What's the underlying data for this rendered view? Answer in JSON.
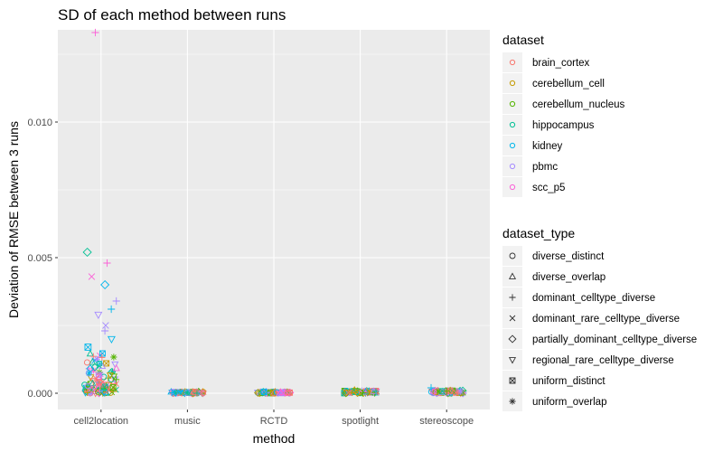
{
  "chart_data": {
    "type": "scatter",
    "title": "SD of each method between runs",
    "xlabel": "method",
    "ylabel": "Deviation of RMSE between 3 runs",
    "categories": [
      "cell2location",
      "music",
      "RCTD",
      "spotlight",
      "stereoscope"
    ],
    "ylim": [
      -0.0006,
      0.0134
    ],
    "yticks": [
      0.0,
      0.005,
      0.01
    ],
    "ytick_labels": [
      "0.000",
      "0.005",
      "0.010"
    ],
    "grid": true,
    "legend_placement": "right",
    "legends": [
      {
        "title": "dataset",
        "kind": "color",
        "entries": [
          {
            "label": "brain_cortex",
            "color": "#F8766D"
          },
          {
            "label": "cerebellum_cell",
            "color": "#C49A00"
          },
          {
            "label": "cerebellum_nucleus",
            "color": "#53B400"
          },
          {
            "label": "hippocampus",
            "color": "#00C094"
          },
          {
            "label": "kidney",
            "color": "#00B6EB"
          },
          {
            "label": "pbmc",
            "color": "#A58AFF"
          },
          {
            "label": "scc_p5",
            "color": "#FB61D7"
          }
        ]
      },
      {
        "title": "dataset_type",
        "kind": "shape",
        "entries": [
          {
            "label": "diverse_distinct",
            "shape": "circle"
          },
          {
            "label": "diverse_overlap",
            "shape": "triangle"
          },
          {
            "label": "dominant_celltype_diverse",
            "shape": "plus"
          },
          {
            "label": "dominant_rare_celltype_diverse",
            "shape": "cross"
          },
          {
            "label": "partially_dominant_celltype_diverse",
            "shape": "diamond"
          },
          {
            "label": "regional_rare_celltype_diverse",
            "shape": "triangle-down"
          },
          {
            "label": "uniform_distinct",
            "shape": "square-cross"
          },
          {
            "label": "uniform_overlap",
            "shape": "asterisk"
          }
        ]
      }
    ],
    "highlighted_points": [
      {
        "method": "cell2location",
        "dataset": "scc_p5",
        "dataset_type": "dominant_celltype_diverse",
        "y": 0.0133
      },
      {
        "method": "cell2location",
        "dataset": "hippocampus",
        "dataset_type": "partially_dominant_celltype_diverse",
        "y": 0.0052
      },
      {
        "method": "cell2location",
        "dataset": "scc_p5",
        "dataset_type": "dominant_celltype_diverse",
        "y": 0.0048
      },
      {
        "method": "cell2location",
        "dataset": "scc_p5",
        "dataset_type": "dominant_rare_celltype_diverse",
        "y": 0.0043
      },
      {
        "method": "cell2location",
        "dataset": "kidney",
        "dataset_type": "partially_dominant_celltype_diverse",
        "y": 0.004
      },
      {
        "method": "cell2location",
        "dataset": "pbmc",
        "dataset_type": "dominant_celltype_diverse",
        "y": 0.0034
      },
      {
        "method": "cell2location",
        "dataset": "kidney",
        "dataset_type": "dominant_celltype_diverse",
        "y": 0.0031
      },
      {
        "method": "cell2location",
        "dataset": "pbmc",
        "dataset_type": "regional_rare_celltype_diverse",
        "y": 0.0029
      },
      {
        "method": "cell2location",
        "dataset": "pbmc",
        "dataset_type": "dominant_rare_celltype_diverse",
        "y": 0.0025
      },
      {
        "method": "cell2location",
        "dataset": "pbmc",
        "dataset_type": "dominant_celltype_diverse",
        "y": 0.0023
      },
      {
        "method": "cell2location",
        "dataset": "kidney",
        "dataset_type": "regional_rare_celltype_diverse",
        "y": 0.002
      },
      {
        "method": "cell2location",
        "dataset": "kidney",
        "dataset_type": "uniform_distinct",
        "y": 0.0017
      },
      {
        "method": "stereoscope",
        "dataset": "kidney",
        "dataset_type": "dominant_celltype_diverse",
        "y": 0.0002
      },
      {
        "method": "spotlight",
        "dataset": "cerebellum_cell",
        "dataset_type": "diverse_overlap",
        "y": 0.0001
      }
    ],
    "cluster_ranges": [
      {
        "method": "cell2location",
        "y_min": 0.0,
        "y_max": 0.0015
      },
      {
        "method": "music",
        "y_min": 0.0,
        "y_max": 5e-05
      },
      {
        "method": "RCTD",
        "y_min": 0.0,
        "y_max": 5e-05
      },
      {
        "method": "spotlight",
        "y_min": 0.0,
        "y_max": 0.0001
      },
      {
        "method": "stereoscope",
        "y_min": 0.0,
        "y_max": 0.0001
      }
    ]
  }
}
